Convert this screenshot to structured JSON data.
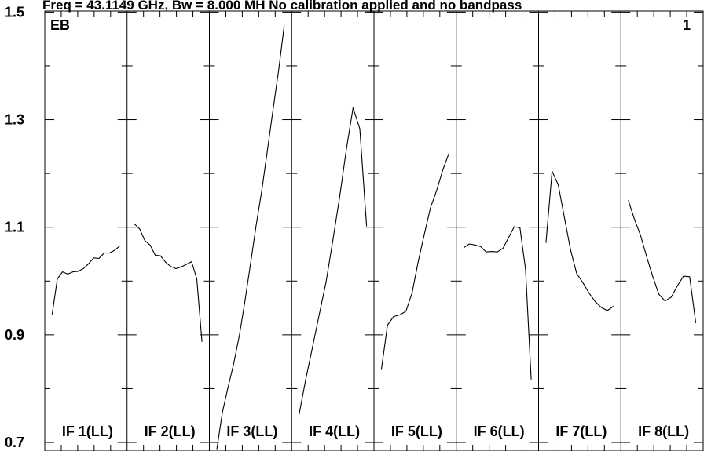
{
  "chart_data": {
    "type": "line",
    "title": "Freq = 43.1149 GHz, Bw = 8.000 MH  No calibration applied and no bandpass",
    "corner_left_label": "EB",
    "corner_right_label": "1",
    "ylim": [
      0.684,
      1.502
    ],
    "y_ticks": [
      "0.7",
      "0.9",
      "1.1",
      "1.3",
      "1.5"
    ],
    "panels": [
      {
        "label": "IF 1(LL)",
        "values": [
          0.938,
          1.004,
          1.017,
          1.013,
          1.017,
          1.018,
          1.023,
          1.032,
          1.043,
          1.042,
          1.052,
          1.052,
          1.057,
          1.065
        ]
      },
      {
        "label": "IF 2(LL)",
        "values": [
          1.106,
          1.097,
          1.075,
          1.067,
          1.048,
          1.047,
          1.035,
          1.027,
          1.023,
          1.026,
          1.031,
          1.036,
          1.004,
          0.887
        ]
      },
      {
        "label": "IF 3(LL)",
        "values": [
          0.686,
          0.756,
          0.802,
          0.846,
          0.898,
          0.962,
          1.032,
          1.103,
          1.168,
          1.242,
          1.318,
          1.392,
          1.475
        ]
      },
      {
        "label": "IF 4(LL)",
        "values": [
          0.752,
          0.818,
          0.878,
          0.938,
          0.998,
          1.075,
          1.155,
          1.244,
          1.322,
          1.283,
          1.102
        ]
      },
      {
        "label": "IF 5(LL)",
        "values": [
          0.835,
          0.918,
          0.934,
          0.937,
          0.944,
          0.978,
          1.036,
          1.087,
          1.136,
          1.168,
          1.206,
          1.237
        ]
      },
      {
        "label": "IF 6(LL)",
        "values": [
          1.062,
          1.069,
          1.067,
          1.064,
          1.054,
          1.055,
          1.054,
          1.061,
          1.081,
          1.101,
          1.099,
          1.022,
          0.817
        ]
      },
      {
        "label": "IF 7(LL)",
        "values": [
          1.071,
          1.204,
          1.179,
          1.118,
          1.058,
          1.014,
          0.997,
          0.978,
          0.962,
          0.951,
          0.945,
          0.953
        ]
      },
      {
        "label": "IF 8(LL)",
        "values": [
          1.15,
          1.115,
          1.085,
          1.045,
          1.008,
          0.975,
          0.963,
          0.97,
          0.991,
          1.009,
          1.008,
          0.922
        ]
      }
    ]
  }
}
